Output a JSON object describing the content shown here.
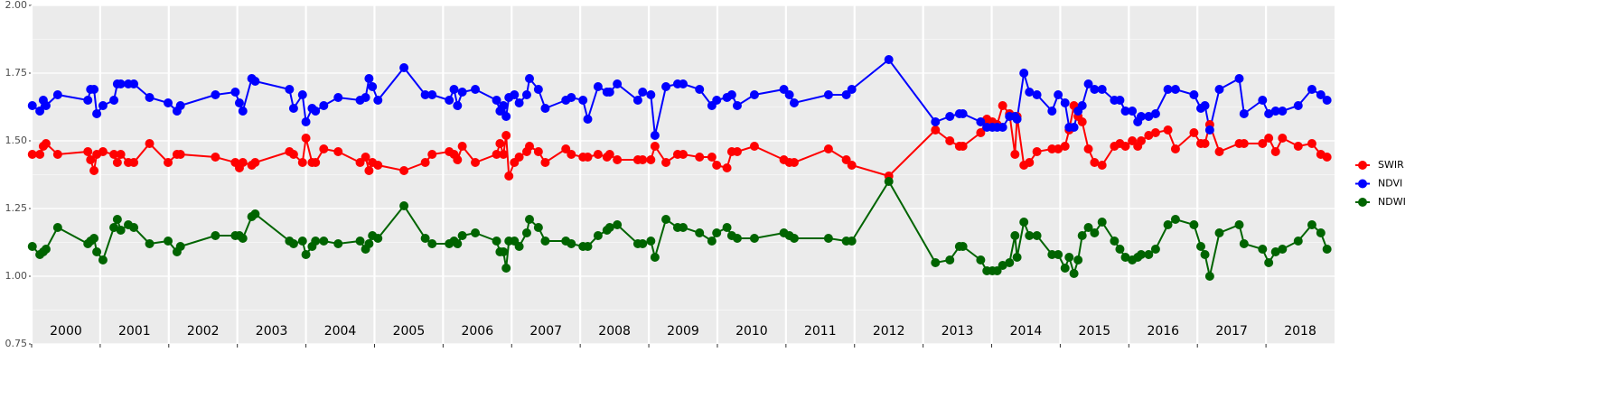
{
  "chart_data": {
    "type": "line",
    "x": [
      2000.01,
      2000.12,
      2000.17,
      2000.21,
      2000.38,
      2000.82,
      2000.86,
      2000.91,
      2000.95,
      2001.04,
      2001.2,
      2001.25,
      2001.3,
      2001.41,
      2001.49,
      2001.72,
      2001.99,
      2002.12,
      2002.17,
      2002.68,
      2002.97,
      2003.03,
      2003.08,
      2003.21,
      2003.26,
      2003.76,
      2003.82,
      2003.95,
      2004.0,
      2004.09,
      2004.14,
      2004.26,
      2004.47,
      2004.79,
      2004.87,
      2004.92,
      2004.97,
      2005.05,
      2005.43,
      2005.74,
      2005.84,
      2006.09,
      2006.16,
      2006.21,
      2006.28,
      2006.47,
      2006.78,
      2006.83,
      2006.88,
      2006.92,
      2006.96,
      2007.04,
      2007.11,
      2007.22,
      2007.26,
      2007.39,
      2007.49,
      2007.79,
      2007.87,
      2008.04,
      2008.11,
      2008.26,
      2008.39,
      2008.43,
      2008.54,
      2008.84,
      2008.91,
      2009.03,
      2009.09,
      2009.25,
      2009.42,
      2009.5,
      2009.74,
      2009.92,
      2009.99,
      2010.14,
      2010.21,
      2010.29,
      2010.54,
      2010.97,
      2011.05,
      2011.12,
      2011.62,
      2011.88,
      2011.96,
      2012.5,
      2013.18,
      2013.39,
      2013.53,
      2013.58,
      2013.84,
      2013.93,
      2014.01,
      2014.08,
      2014.16,
      2014.26,
      2014.34,
      2014.37,
      2014.47,
      2014.55,
      2014.66,
      2014.88,
      2014.97,
      2015.07,
      2015.13,
      2015.2,
      2015.26,
      2015.32,
      2015.41,
      2015.5,
      2015.61,
      2015.79,
      2015.87,
      2015.95,
      2016.05,
      2016.13,
      2016.18,
      2016.29,
      2016.39,
      2016.57,
      2016.68,
      2016.95,
      2017.05,
      2017.11,
      2017.18,
      2017.32,
      2017.61,
      2017.68,
      2017.95,
      2018.04,
      2018.14,
      2018.24,
      2018.47,
      2018.67,
      2018.8,
      2018.89
    ],
    "series": [
      {
        "name": "SWIR",
        "color": "#ff0000",
        "values": [
          1.45,
          1.45,
          1.48,
          1.49,
          1.45,
          1.46,
          1.43,
          1.39,
          1.45,
          1.46,
          1.45,
          1.42,
          1.45,
          1.42,
          1.42,
          1.49,
          1.42,
          1.45,
          1.45,
          1.44,
          1.42,
          1.4,
          1.42,
          1.41,
          1.42,
          1.46,
          1.45,
          1.42,
          1.51,
          1.42,
          1.42,
          1.47,
          1.46,
          1.42,
          1.44,
          1.39,
          1.42,
          1.41,
          1.39,
          1.42,
          1.45,
          1.46,
          1.45,
          1.43,
          1.48,
          1.42,
          1.45,
          1.49,
          1.45,
          1.52,
          1.37,
          1.42,
          1.44,
          1.46,
          1.48,
          1.46,
          1.42,
          1.47,
          1.45,
          1.44,
          1.44,
          1.45,
          1.44,
          1.45,
          1.43,
          1.43,
          1.43,
          1.43,
          1.48,
          1.42,
          1.45,
          1.45,
          1.44,
          1.44,
          1.41,
          1.4,
          1.46,
          1.46,
          1.48,
          1.43,
          1.42,
          1.42,
          1.47,
          1.43,
          1.41,
          1.37,
          1.54,
          1.5,
          1.48,
          1.48,
          1.53,
          1.58,
          1.57,
          1.56,
          1.63,
          1.6,
          1.45,
          1.59,
          1.41,
          1.42,
          1.46,
          1.47,
          1.47,
          1.48,
          1.54,
          1.63,
          1.59,
          1.57,
          1.47,
          1.42,
          1.41,
          1.48,
          1.49,
          1.48,
          1.5,
          1.48,
          1.5,
          1.52,
          1.53,
          1.54,
          1.47,
          1.53,
          1.49,
          1.49,
          1.56,
          1.46,
          1.49,
          1.49,
          1.49,
          1.51,
          1.46,
          1.51,
          1.48,
          1.49,
          1.45,
          1.44
        ]
      },
      {
        "name": "NDVI",
        "color": "#0000ff",
        "values": [
          1.63,
          1.61,
          1.65,
          1.63,
          1.67,
          1.65,
          1.69,
          1.69,
          1.6,
          1.63,
          1.65,
          1.71,
          1.71,
          1.71,
          1.71,
          1.66,
          1.64,
          1.61,
          1.63,
          1.67,
          1.68,
          1.64,
          1.61,
          1.73,
          1.72,
          1.69,
          1.62,
          1.67,
          1.57,
          1.62,
          1.61,
          1.63,
          1.66,
          1.65,
          1.66,
          1.73,
          1.7,
          1.65,
          1.77,
          1.67,
          1.67,
          1.65,
          1.69,
          1.63,
          1.68,
          1.69,
          1.65,
          1.61,
          1.63,
          1.59,
          1.66,
          1.67,
          1.64,
          1.67,
          1.73,
          1.69,
          1.62,
          1.65,
          1.66,
          1.65,
          1.58,
          1.7,
          1.68,
          1.68,
          1.71,
          1.65,
          1.68,
          1.67,
          1.52,
          1.7,
          1.71,
          1.71,
          1.69,
          1.63,
          1.65,
          1.66,
          1.67,
          1.63,
          1.67,
          1.69,
          1.67,
          1.64,
          1.67,
          1.67,
          1.69,
          1.8,
          1.57,
          1.59,
          1.6,
          1.6,
          1.57,
          1.55,
          1.55,
          1.55,
          1.55,
          1.59,
          1.59,
          1.58,
          1.75,
          1.68,
          1.67,
          1.61,
          1.67,
          1.64,
          1.55,
          1.55,
          1.61,
          1.63,
          1.71,
          1.69,
          1.69,
          1.65,
          1.65,
          1.61,
          1.61,
          1.57,
          1.59,
          1.59,
          1.6,
          1.69,
          1.69,
          1.67,
          1.62,
          1.63,
          1.54,
          1.69,
          1.73,
          1.6,
          1.65,
          1.6,
          1.61,
          1.61,
          1.63,
          1.69,
          1.67,
          1.65
        ]
      },
      {
        "name": "NDWI",
        "color": "#006400",
        "values": [
          1.11,
          1.08,
          1.09,
          1.1,
          1.18,
          1.12,
          1.13,
          1.14,
          1.09,
          1.06,
          1.18,
          1.21,
          1.17,
          1.19,
          1.18,
          1.12,
          1.13,
          1.09,
          1.11,
          1.15,
          1.15,
          1.15,
          1.14,
          1.22,
          1.23,
          1.13,
          1.12,
          1.13,
          1.08,
          1.11,
          1.13,
          1.13,
          1.12,
          1.13,
          1.1,
          1.12,
          1.15,
          1.14,
          1.26,
          1.14,
          1.12,
          1.12,
          1.13,
          1.12,
          1.15,
          1.16,
          1.13,
          1.09,
          1.09,
          1.03,
          1.13,
          1.13,
          1.11,
          1.16,
          1.21,
          1.18,
          1.13,
          1.13,
          1.12,
          1.11,
          1.11,
          1.15,
          1.17,
          1.18,
          1.19,
          1.12,
          1.12,
          1.13,
          1.07,
          1.21,
          1.18,
          1.18,
          1.16,
          1.13,
          1.16,
          1.18,
          1.15,
          1.14,
          1.14,
          1.16,
          1.15,
          1.14,
          1.14,
          1.13,
          1.13,
          1.35,
          1.05,
          1.06,
          1.11,
          1.11,
          1.06,
          1.02,
          1.02,
          1.02,
          1.04,
          1.05,
          1.15,
          1.07,
          1.2,
          1.15,
          1.15,
          1.08,
          1.08,
          1.03,
          1.07,
          1.01,
          1.06,
          1.15,
          1.18,
          1.16,
          1.2,
          1.13,
          1.1,
          1.07,
          1.06,
          1.07,
          1.08,
          1.08,
          1.1,
          1.19,
          1.21,
          1.19,
          1.11,
          1.08,
          1.0,
          1.16,
          1.19,
          1.12,
          1.1,
          1.05,
          1.09,
          1.1,
          1.13,
          1.19,
          1.16,
          1.1
        ]
      }
    ],
    "xlim": [
      2000,
      2019
    ],
    "xticks": [
      2000,
      2001,
      2002,
      2003,
      2004,
      2005,
      2006,
      2007,
      2008,
      2009,
      2010,
      2011,
      2012,
      2013,
      2014,
      2015,
      2016,
      2017,
      2018
    ],
    "ylim": [
      0.75,
      2
    ],
    "yticks": [
      0.75,
      {
        "value": 1,
        "label": "1.00"
      },
      1.25,
      {
        "value": 1.5,
        "label": "1.50"
      },
      1.75,
      {
        "value": 2,
        "label": "2.00"
      }
    ],
    "grid": true,
    "legend": "right"
  }
}
